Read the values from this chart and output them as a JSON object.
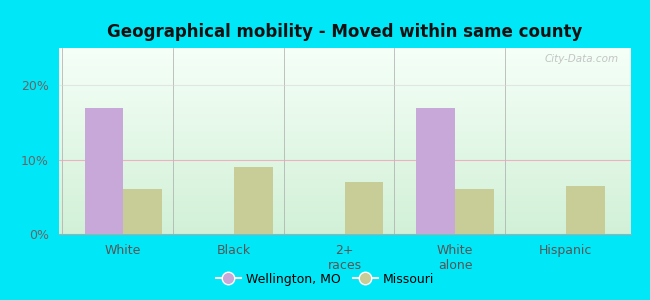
{
  "title": "Geographical mobility - Moved within same county",
  "categories": [
    "White",
    "Black",
    "2+\nraces",
    "White\nalone",
    "Hispanic"
  ],
  "wellington_values": [
    17.0,
    0,
    0,
    17.0,
    0
  ],
  "missouri_values": [
    6.0,
    9.0,
    7.0,
    6.0,
    6.5
  ],
  "wellington_color": "#c8a8d8",
  "missouri_color": "#c8cc96",
  "bar_width": 0.35,
  "ylim": [
    0,
    25
  ],
  "yticks": [
    0,
    10,
    20
  ],
  "ytick_labels": [
    "0%",
    "10%",
    "20%"
  ],
  "background_outer": "#00e8f8",
  "grid_color_h10": "#f4a0b8",
  "grid_color_h20": "#d8d8d8",
  "legend_wellington": "Wellington, MO",
  "legend_missouri": "Missouri",
  "watermark": "City-Data.com"
}
